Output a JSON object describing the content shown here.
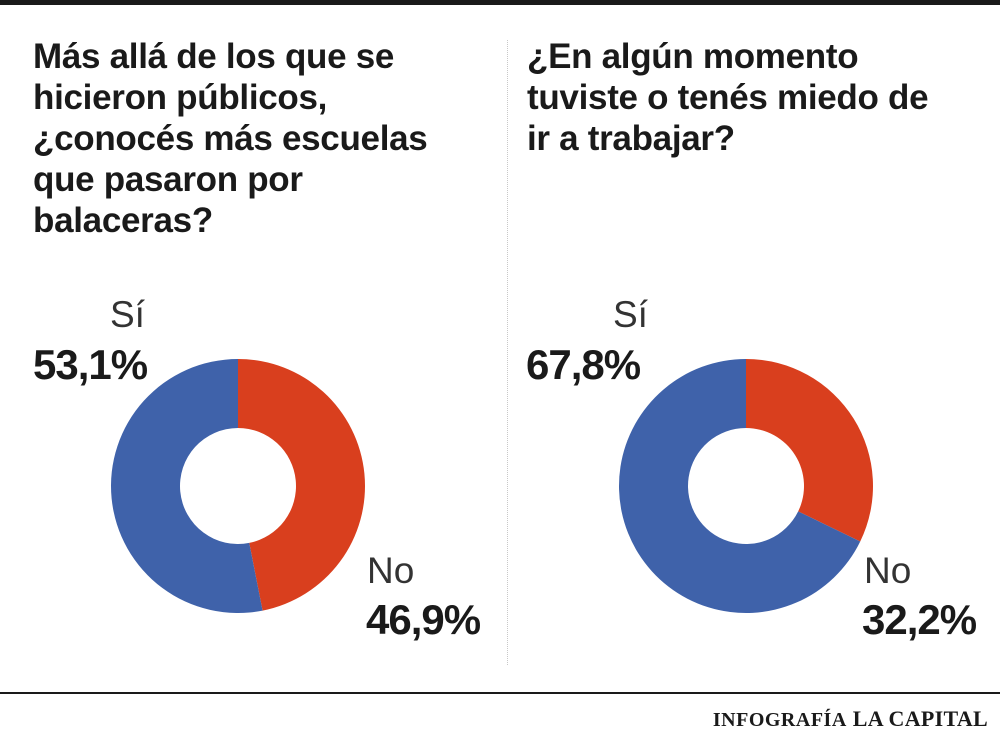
{
  "chart_data": [
    {
      "type": "pie",
      "title": "Más allá de los que se hicieron públicos, ¿conocés más escuelas que pasaron por balaceras?",
      "categories": [
        "Sí",
        "No"
      ],
      "values": [
        53.1,
        46.9
      ],
      "value_labels": [
        "53,1%",
        "46,9%"
      ],
      "colors": [
        "#3f62aa",
        "#d93f1e"
      ],
      "donut": true
    },
    {
      "type": "pie",
      "title": "¿En algún momento tuviste o tenés miedo de ir a trabajar?",
      "categories": [
        "Sí",
        "No"
      ],
      "values": [
        67.8,
        32.2
      ],
      "value_labels": [
        "67,8%",
        "32,2%"
      ],
      "colors": [
        "#3f62aa",
        "#d93f1e"
      ],
      "donut": true
    }
  ],
  "credit": {
    "prefix": "INFOGRAFÍA",
    "brand": "LA CAPITAL"
  }
}
